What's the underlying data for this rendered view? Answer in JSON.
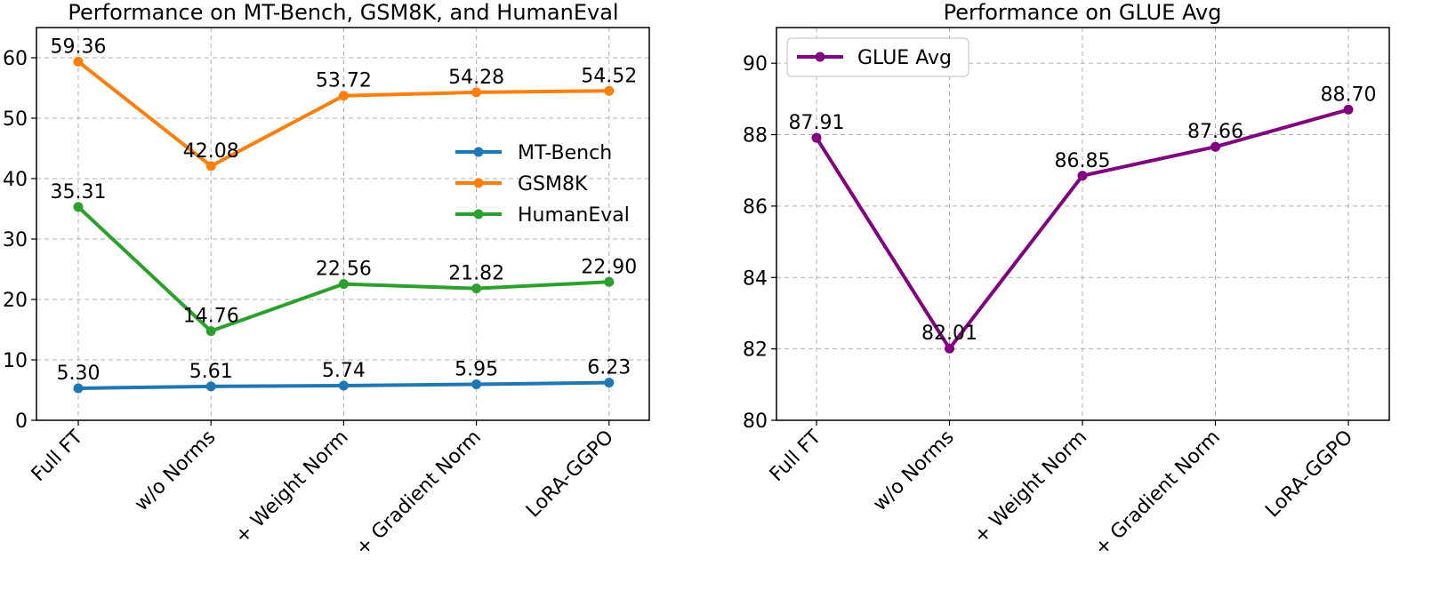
{
  "chart_data": [
    {
      "type": "line",
      "title": "Performance on MT-Bench, GSM8K, and HumanEval",
      "categories": [
        "Full FT",
        "w/o Norms",
        "+ Weight Norm",
        "+ Gradient Norm",
        "LoRA-GGPO"
      ],
      "ylim": [
        0,
        65
      ],
      "yticks": [
        0,
        10,
        20,
        30,
        40,
        50,
        60
      ],
      "grid": true,
      "legend": "center-right",
      "series": [
        {
          "name": "MT-Bench",
          "color": "#1f77b4",
          "values": [
            5.3,
            5.61,
            5.74,
            5.95,
            6.23
          ],
          "labels": [
            "5.30",
            "5.61",
            "5.74",
            "5.95",
            "6.23"
          ]
        },
        {
          "name": "GSM8K",
          "color": "#ff7f0e",
          "values": [
            59.36,
            42.08,
            53.72,
            54.28,
            54.52
          ],
          "labels": [
            "59.36",
            "42.08",
            "53.72",
            "54.28",
            "54.52"
          ]
        },
        {
          "name": "HumanEval",
          "color": "#2ca02c",
          "values": [
            35.31,
            14.76,
            22.56,
            21.82,
            22.9
          ],
          "labels": [
            "35.31",
            "14.76",
            "22.56",
            "21.82",
            "22.90"
          ]
        }
      ]
    },
    {
      "type": "line",
      "title": "Performance on GLUE Avg",
      "categories": [
        "Full FT",
        "w/o Norms",
        "+ Weight Norm",
        "+ Gradient Norm",
        "LoRA-GGPO"
      ],
      "ylim": [
        80,
        91
      ],
      "yticks": [
        80,
        82,
        84,
        86,
        88,
        90
      ],
      "grid": true,
      "legend": "top-left",
      "series": [
        {
          "name": "GLUE Avg",
          "color": "#800080",
          "values": [
            87.91,
            82.01,
            86.85,
            87.66,
            88.7
          ],
          "labels": [
            "87.91",
            "82.01",
            "86.85",
            "87.66",
            "88.70"
          ]
        }
      ]
    }
  ]
}
